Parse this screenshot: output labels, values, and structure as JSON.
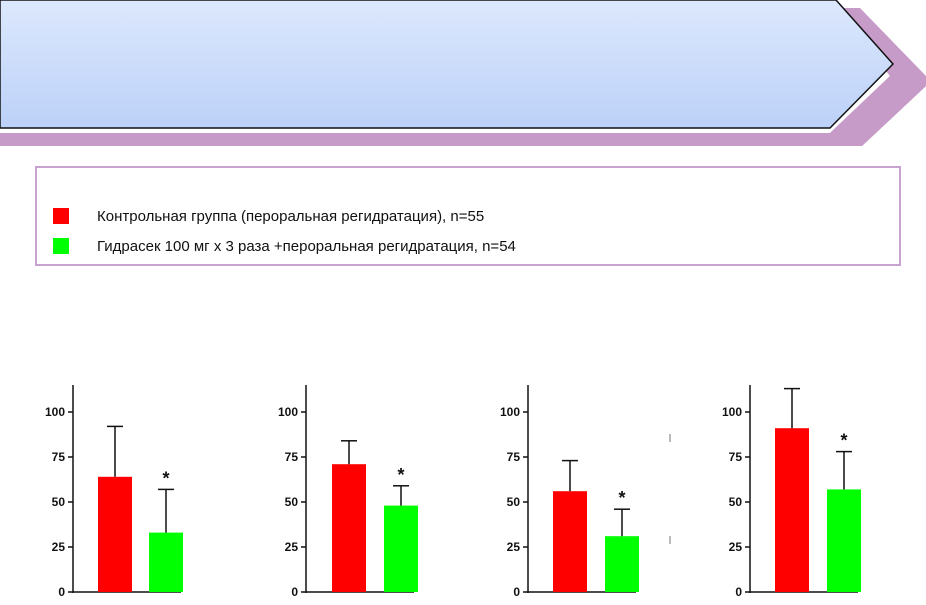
{
  "legend": {
    "items": [
      {
        "label": "Контрольная группа (пероральная регидратация), n=55",
        "color": "#ff0000"
      },
      {
        "label": "Гидрасек 100 мг х 3 раза +пероральная регидратация, n=54",
        "color": "#00ff00"
      }
    ]
  },
  "colors": {
    "banner_fill": "#c9dcfb",
    "banner_shadow": "#c79bc8",
    "legend_border": "#c9a3cf"
  },
  "chart_data": [
    {
      "type": "bar",
      "ylim": [
        0,
        115
      ],
      "yticks": [
        "0",
        "25",
        "50",
        "75",
        "100"
      ],
      "series": [
        {
          "color": "#ff0000",
          "value": 64,
          "error": 28,
          "significance": ""
        },
        {
          "color": "#00ff00",
          "value": 33,
          "error": 24,
          "significance": "*"
        }
      ]
    },
    {
      "type": "bar",
      "ylim": [
        0,
        115
      ],
      "yticks": [
        "0",
        "25",
        "50",
        "75",
        "100"
      ],
      "series": [
        {
          "color": "#ff0000",
          "value": 71,
          "error": 13,
          "significance": ""
        },
        {
          "color": "#00ff00",
          "value": 48,
          "error": 11,
          "significance": "*"
        }
      ]
    },
    {
      "type": "bar",
      "ylim": [
        0,
        115
      ],
      "yticks": [
        "0",
        "25",
        "50",
        "75",
        "100"
      ],
      "series": [
        {
          "color": "#ff0000",
          "value": 56,
          "error": 17,
          "significance": ""
        },
        {
          "color": "#00ff00",
          "value": 31,
          "error": 15,
          "significance": "*"
        }
      ]
    },
    {
      "type": "bar",
      "ylim": [
        0,
        115
      ],
      "yticks": [
        "0",
        "25",
        "50",
        "75",
        "100"
      ],
      "series": [
        {
          "color": "#ff0000",
          "value": 91,
          "error": 22,
          "significance": ""
        },
        {
          "color": "#00ff00",
          "value": 57,
          "error": 21,
          "significance": "*"
        }
      ]
    }
  ]
}
